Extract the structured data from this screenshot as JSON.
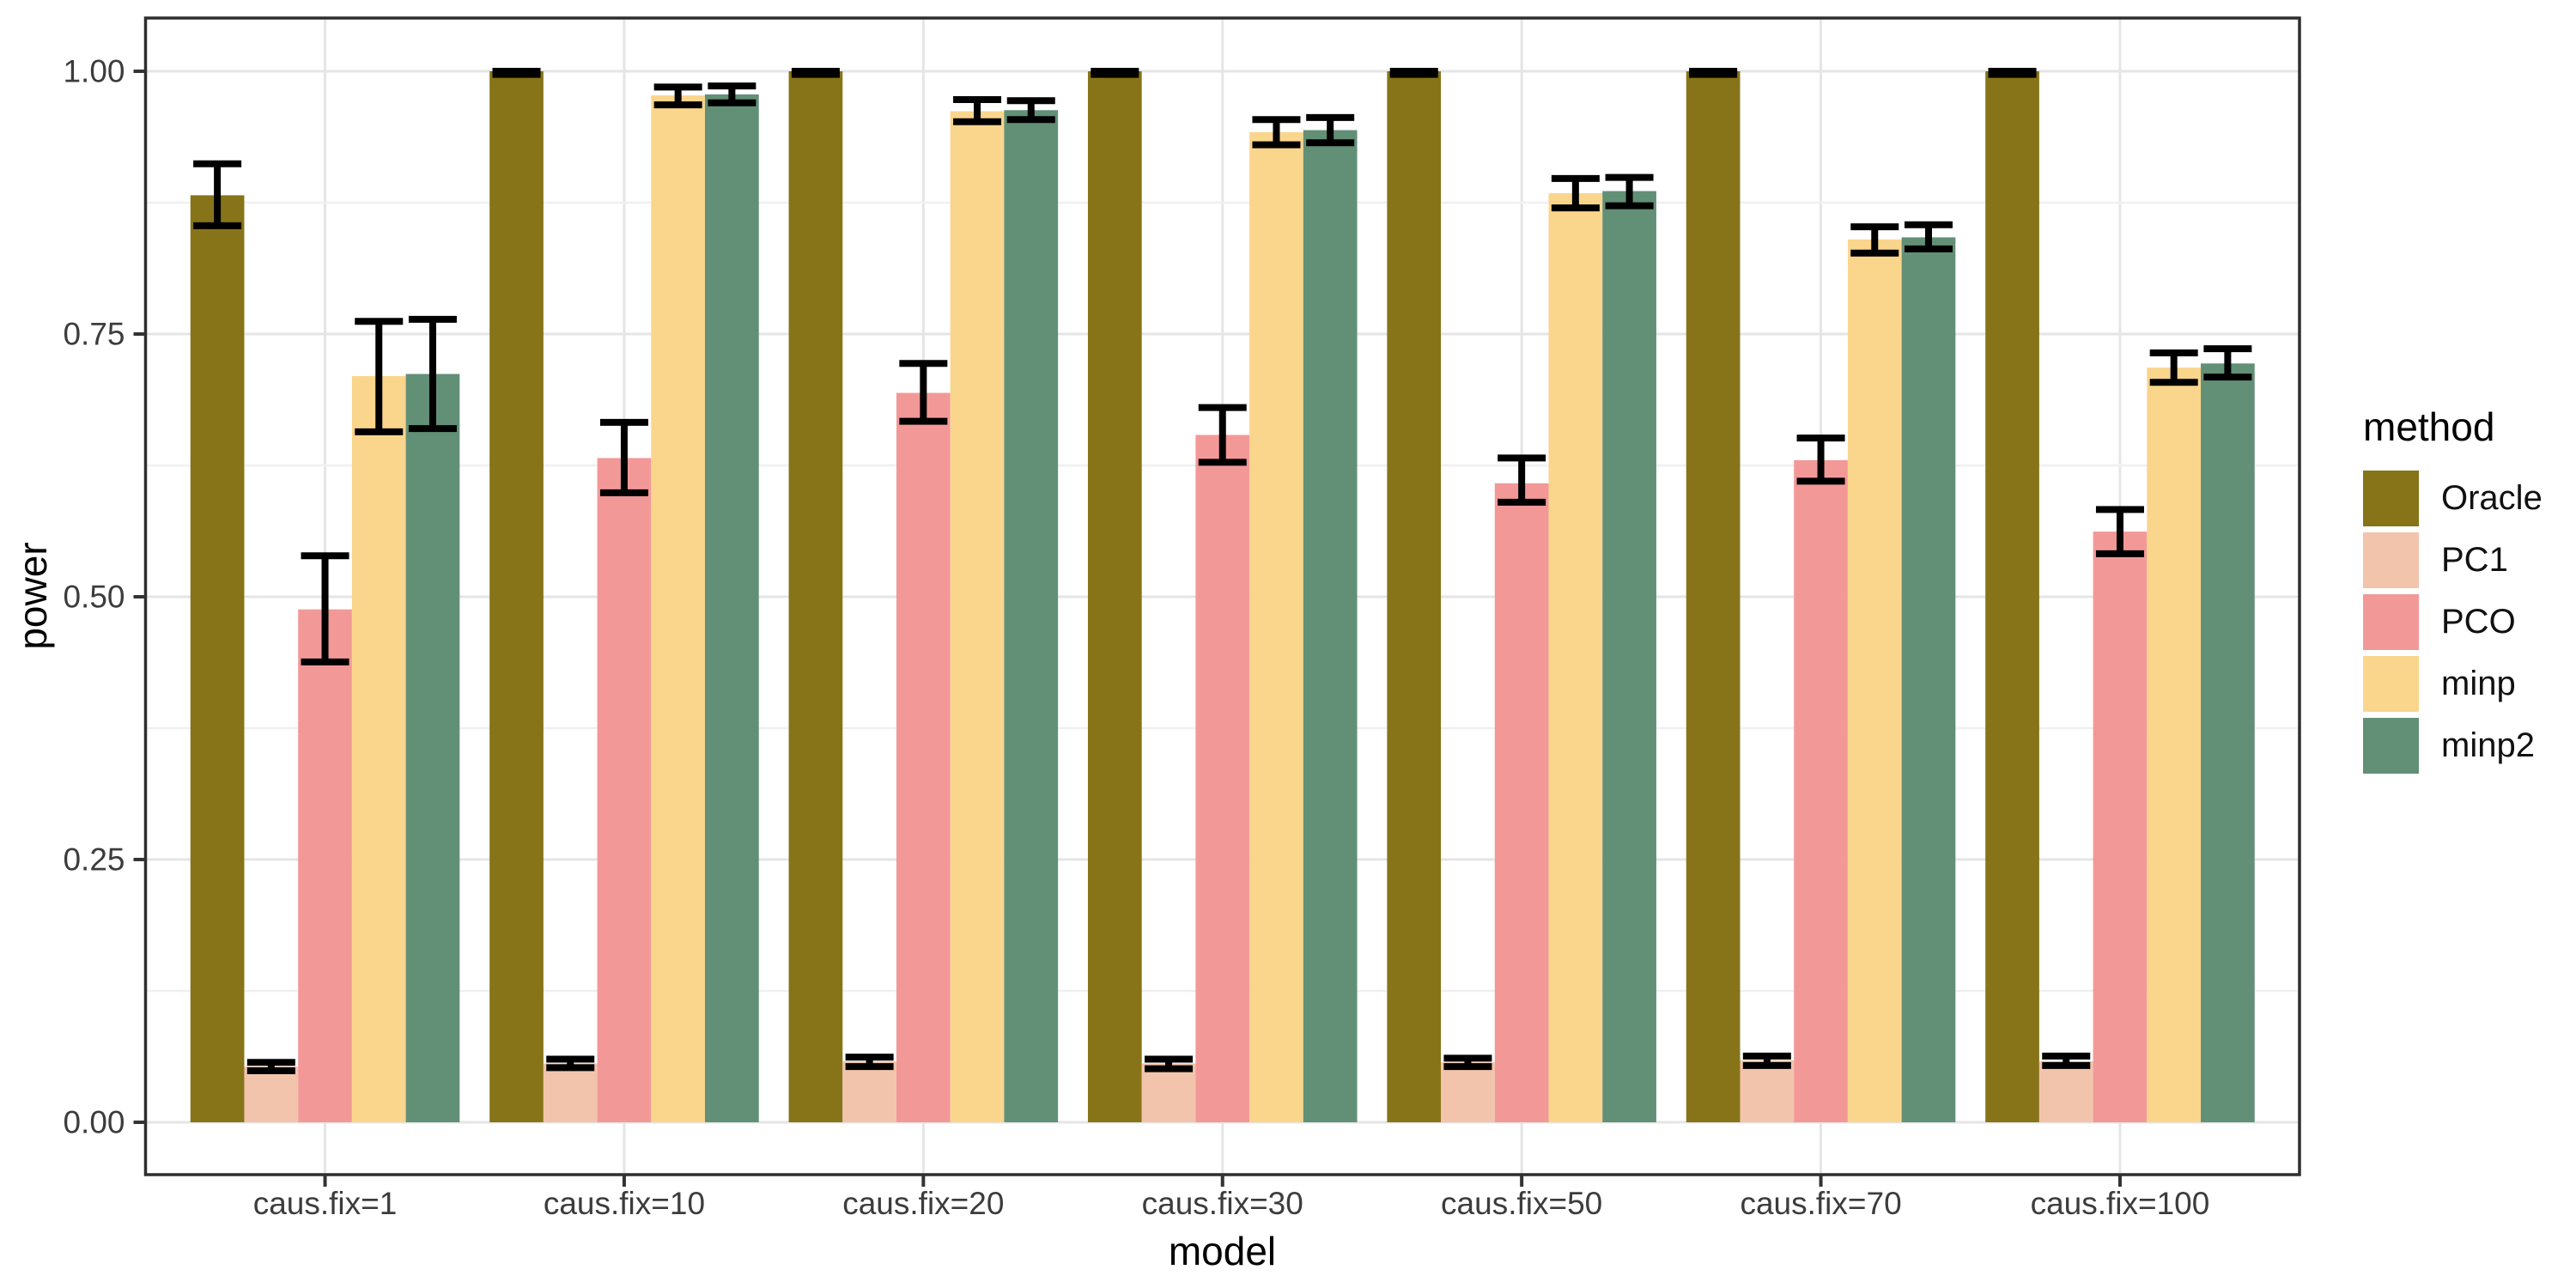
{
  "chart_data": {
    "type": "bar",
    "xlabel": "model",
    "ylabel": "power",
    "legend_title": "method",
    "legend_position": "right",
    "grid": "major+minor",
    "ylim": [
      0,
      1.05
    ],
    "bar_group_width": 0.9,
    "error_bars": true,
    "categories": [
      "caus.fix=1",
      "caus.fix=10",
      "caus.fix=20",
      "caus.fix=30",
      "caus.fix=50",
      "caus.fix=70",
      "caus.fix=100"
    ],
    "ytick_labels": [
      "0.00",
      "0.25",
      "0.50",
      "0.75",
      "1.00"
    ],
    "ytick_values": [
      0,
      0.25,
      0.5,
      0.75,
      1
    ],
    "minor_ytick_values": [
      0.125,
      0.375,
      0.625,
      0.875
    ],
    "series": [
      {
        "name": "Oracle",
        "color": "#877418",
        "values": [
          0.882,
          1.0,
          1.0,
          1.0,
          1.0,
          1.0,
          1.0
        ],
        "ci_low": [
          0.853,
          0.997,
          0.997,
          0.997,
          0.997,
          0.997,
          0.997
        ],
        "ci_high": [
          0.912,
          1.0,
          1.0,
          1.0,
          1.0,
          1.0,
          1.0
        ]
      },
      {
        "name": "PC1",
        "color": "#F3C4AC",
        "values": [
          0.053,
          0.056,
          0.058,
          0.056,
          0.057,
          0.059,
          0.058
        ],
        "ci_low": [
          0.049,
          0.052,
          0.053,
          0.051,
          0.053,
          0.054,
          0.054
        ],
        "ci_high": [
          0.057,
          0.06,
          0.062,
          0.06,
          0.061,
          0.063,
          0.063
        ]
      },
      {
        "name": "PCO",
        "color": "#F29998",
        "values": [
          0.488,
          0.632,
          0.694,
          0.654,
          0.608,
          0.63,
          0.562
        ],
        "ci_low": [
          0.438,
          0.599,
          0.667,
          0.628,
          0.59,
          0.61,
          0.541
        ],
        "ci_high": [
          0.539,
          0.666,
          0.722,
          0.68,
          0.632,
          0.651,
          0.583
        ]
      },
      {
        "name": "minp",
        "color": "#FAD58C",
        "values": [
          0.71,
          0.977,
          0.962,
          0.942,
          0.884,
          0.84,
          0.718
        ],
        "ci_low": [
          0.657,
          0.968,
          0.952,
          0.93,
          0.87,
          0.827,
          0.704
        ],
        "ci_high": [
          0.762,
          0.985,
          0.973,
          0.954,
          0.898,
          0.852,
          0.732
        ]
      },
      {
        "name": "minp2",
        "color": "#629077",
        "values": [
          0.712,
          0.978,
          0.963,
          0.944,
          0.886,
          0.842,
          0.722
        ],
        "ci_low": [
          0.66,
          0.97,
          0.954,
          0.932,
          0.872,
          0.831,
          0.709
        ],
        "ci_high": [
          0.764,
          0.986,
          0.972,
          0.956,
          0.899,
          0.854,
          0.736
        ]
      }
    ],
    "colors": {
      "background": "#FFFFFF",
      "grid_major": "#E5E5E5",
      "grid_minor": "#F0F0F0",
      "panel_border": "#2E2E2E",
      "error_bar": "#000000",
      "tick": "#333333",
      "axis_text": "#3C3C3C",
      "title_text": "#000000"
    }
  }
}
